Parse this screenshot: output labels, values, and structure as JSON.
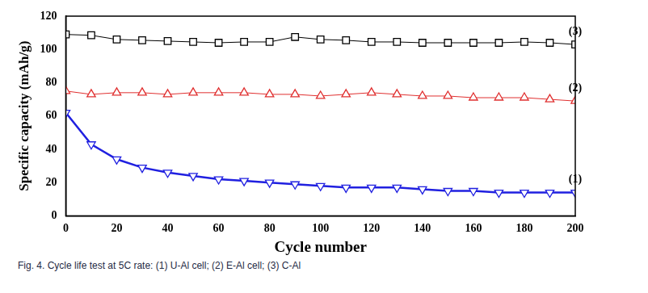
{
  "chart_data": {
    "type": "line",
    "caption": "Fig. 4. Cycle life test at 5C rate: (1) U-Al cell; (2) E-Al cell; (3) C-Al",
    "x_label": "Cycle number",
    "y_label": "Specific capacity (mAh/g)",
    "x": [
      0,
      10,
      20,
      30,
      40,
      50,
      60,
      70,
      80,
      90,
      100,
      110,
      120,
      130,
      140,
      150,
      160,
      170,
      180,
      190,
      200
    ],
    "xlim": [
      0,
      200
    ],
    "xticks": [
      0,
      20,
      40,
      60,
      80,
      100,
      120,
      140,
      160,
      180,
      200
    ],
    "ylim": [
      0,
      120
    ],
    "yticks": [
      0,
      20,
      40,
      60,
      80,
      100,
      120
    ],
    "grid": false,
    "series": [
      {
        "name": "(1)",
        "color": "#2020e0",
        "marker": "triangle-down",
        "line_style": "solid",
        "values": [
          62,
          43,
          34,
          29,
          26,
          24,
          22,
          21,
          20,
          19,
          18,
          17,
          17,
          17,
          16,
          15,
          15,
          14,
          14,
          14,
          14
        ]
      },
      {
        "name": "(2)",
        "color": "#e03030",
        "marker": "triangle-up",
        "line_style": "solid",
        "values": [
          75,
          73,
          74,
          74,
          73,
          74,
          74,
          74,
          73,
          73,
          72,
          73,
          74,
          73,
          72,
          72,
          71,
          71,
          71,
          70,
          69
        ]
      },
      {
        "name": "(3)",
        "color": "#000000",
        "marker": "square",
        "line_style": "solid",
        "values": [
          109,
          108.5,
          106,
          105.5,
          105,
          104.5,
          104,
          104.5,
          104.5,
          107.5,
          106,
          105.5,
          104.5,
          104.5,
          104,
          104,
          104,
          104,
          104.5,
          104,
          103
        ]
      }
    ]
  }
}
